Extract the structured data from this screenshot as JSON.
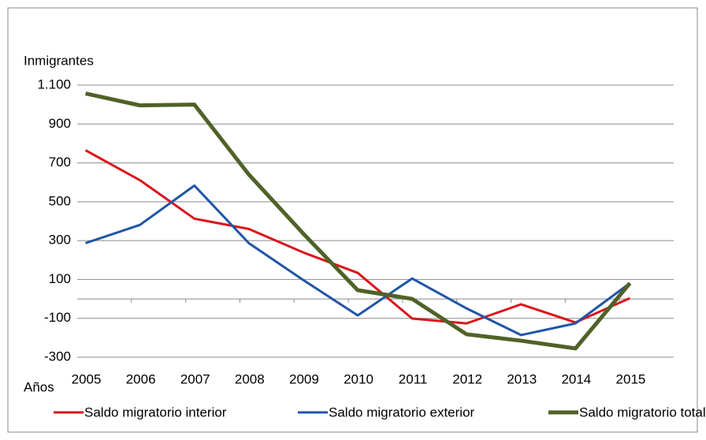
{
  "chart_data": {
    "type": "line",
    "y_label": "Inmigrantes",
    "x_label": "Años",
    "categories": [
      "2005",
      "2006",
      "2007",
      "2008",
      "2009",
      "2010",
      "2011",
      "2012",
      "2013",
      "2014",
      "2015"
    ],
    "series": [
      {
        "name": "Saldo migratorio interior",
        "color": "#d9161c",
        "width": 3,
        "values": [
          765,
          611,
          413,
          360,
          239,
          134,
          -101,
          -126,
          -28,
          -121,
          4
        ]
      },
      {
        "name": "Saldo migratorio exterior",
        "color": "#1f55a6",
        "width": 3,
        "values": [
          287,
          381,
          583,
          287,
          97,
          -85,
          105,
          -49,
          -186,
          -126,
          81
        ]
      },
      {
        "name": "Saldo migratorio total",
        "color": "#4f6228",
        "width": 5,
        "values": [
          1057,
          996,
          1000,
          640,
          336,
          45,
          0,
          -182,
          -215,
          -255,
          81
        ]
      }
    ],
    "ylim": [
      -300,
      1100
    ],
    "yticks": [
      {
        "value": 1100,
        "label": "1.100"
      },
      900,
      700,
      500,
      300,
      100,
      -100,
      -300
    ],
    "grid": true,
    "legend": "bottom"
  }
}
